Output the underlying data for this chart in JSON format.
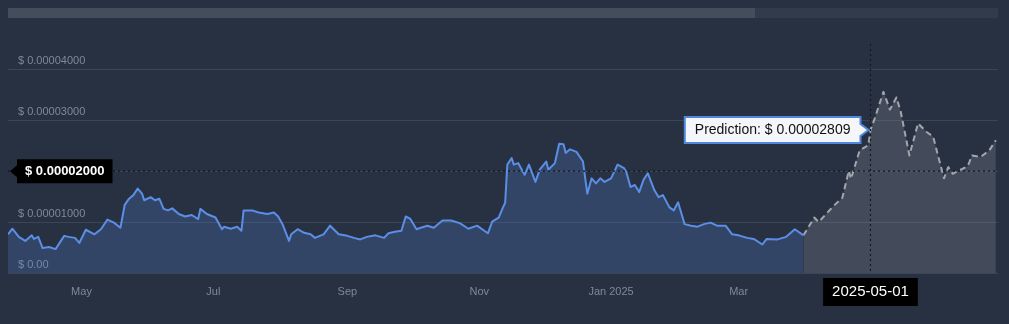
{
  "chart_data": {
    "type": "area",
    "xlim": [
      "2024-03-28",
      "2025-06-29"
    ],
    "ylim": [
      0,
      4.5e-05
    ],
    "xticks": [
      {
        "value": "2024-05-01",
        "label": "May"
      },
      {
        "value": "2024-07-01",
        "label": "Jul"
      },
      {
        "value": "2024-09-01",
        "label": "Sep"
      },
      {
        "value": "2024-11-01",
        "label": "Nov"
      },
      {
        "value": "2025-01-01",
        "label": "Jan 2025"
      },
      {
        "value": "2025-03-01",
        "label": "Mar"
      }
    ],
    "yticks": [
      {
        "value": 0,
        "label": "$ 0.00"
      },
      {
        "value": 1e-05,
        "label": "$ 0.00001000"
      },
      {
        "value": 2e-05,
        "label": null
      },
      {
        "value": 3e-05,
        "label": "$ 0.00003000"
      },
      {
        "value": 4e-05,
        "label": "$ 0.00004000"
      }
    ],
    "grid": "y",
    "legend": false,
    "marker": "none",
    "series": [
      {
        "type": "area",
        "color": "#5b8ee6",
        "line_style": "solid",
        "x": [
          "2024-03-28",
          "2024-03-30",
          "2024-04-02",
          "2024-04-05",
          "2024-04-08",
          "2024-04-09",
          "2024-04-11",
          "2024-04-13",
          "2024-04-16",
          "2024-04-19",
          "2024-04-23",
          "2024-04-25",
          "2024-04-28",
          "2024-04-30",
          "2024-05-03",
          "2024-05-07",
          "2024-05-10",
          "2024-05-13",
          "2024-05-16",
          "2024-05-19",
          "2024-05-21",
          "2024-05-23",
          "2024-05-25",
          "2024-05-27",
          "2024-05-29",
          "2024-05-30",
          "2024-06-02",
          "2024-06-04",
          "2024-06-06",
          "2024-06-08",
          "2024-06-10",
          "2024-06-12",
          "2024-06-15",
          "2024-06-18",
          "2024-06-21",
          "2024-06-24",
          "2024-06-25",
          "2024-06-28",
          "2024-07-02",
          "2024-07-05",
          "2024-07-06",
          "2024-07-09",
          "2024-07-12",
          "2024-07-14",
          "2024-07-15",
          "2024-07-19",
          "2024-07-22",
          "2024-07-26",
          "2024-07-29",
          "2024-07-31",
          "2024-08-02",
          "2024-08-05",
          "2024-08-06",
          "2024-08-09",
          "2024-08-12",
          "2024-08-15",
          "2024-08-17",
          "2024-08-21",
          "2024-08-24",
          "2024-08-28",
          "2024-09-01",
          "2024-09-04",
          "2024-09-07",
          "2024-09-10",
          "2024-09-14",
          "2024-09-18",
          "2024-09-20",
          "2024-09-23",
          "2024-09-26",
          "2024-09-28",
          "2024-09-30",
          "2024-10-03",
          "2024-10-05",
          "2024-10-08",
          "2024-10-11",
          "2024-10-15",
          "2024-10-19",
          "2024-10-23",
          "2024-10-27",
          "2024-10-31",
          "2024-11-05",
          "2024-11-07",
          "2024-11-10",
          "2024-11-12",
          "2024-11-13",
          "2024-11-14",
          "2024-11-16",
          "2024-11-17",
          "2024-11-19",
          "2024-11-22",
          "2024-11-24",
          "2024-11-27",
          "2024-11-29",
          "2024-12-02",
          "2024-12-03",
          "2024-12-06",
          "2024-12-08",
          "2024-12-10",
          "2024-12-11",
          "2024-12-13",
          "2024-12-16",
          "2024-12-19",
          "2024-12-21",
          "2024-12-23",
          "2024-12-25",
          "2024-12-27",
          "2024-12-29",
          "2025-01-01",
          "2025-01-04",
          "2025-01-07",
          "2025-01-08",
          "2025-01-10",
          "2025-01-12",
          "2025-01-14",
          "2025-01-16",
          "2025-01-18",
          "2025-01-21",
          "2025-01-23",
          "2025-01-25",
          "2025-01-28",
          "2025-01-30",
          "2025-02-01",
          "2025-02-04",
          "2025-02-07",
          "2025-02-10",
          "2025-02-13",
          "2025-02-16",
          "2025-02-19",
          "2025-02-23",
          "2025-02-26",
          "2025-03-01",
          "2025-03-05",
          "2025-03-08",
          "2025-03-12",
          "2025-03-14",
          "2025-03-19",
          "2025-03-23",
          "2025-03-27",
          "2025-03-31"
        ],
        "values": [
          7.6e-06,
          8.7e-06,
          7.1e-06,
          6.3e-06,
          7.4e-06,
          6.7e-06,
          7.1e-06,
          4.9e-06,
          5.1e-06,
          4.7e-06,
          7.3e-06,
          7.1e-06,
          6.9e-06,
          5.9e-06,
          8.5e-06,
          7.6e-06,
          8.6e-06,
          1.05e-05,
          9.9e-06,
          8.9e-06,
          1.34e-05,
          1.46e-05,
          1.53e-05,
          1.66e-05,
          1.56e-05,
          1.43e-05,
          1.49e-05,
          1.43e-05,
          1.46e-05,
          1.26e-05,
          1.23e-05,
          1.27e-05,
          1.16e-05,
          1.11e-05,
          1.14e-05,
          1.06e-05,
          1.26e-05,
          1.16e-05,
          1.09e-05,
          8.6e-06,
          9.1e-06,
          8.7e-06,
          9.1e-06,
          8.3e-06,
          1.23e-05,
          1.23e-05,
          1.19e-05,
          1.16e-05,
          1.19e-05,
          1.11e-05,
          9.6e-06,
          6.3e-06,
          7.6e-06,
          8.6e-06,
          7.9e-06,
          7.6e-06,
          6.9e-06,
          7.6e-06,
          9.3e-06,
          7.6e-06,
          7.3e-06,
          6.9e-06,
          6.6e-06,
          7.1e-06,
          7.4e-06,
          6.9e-06,
          7.8e-06,
          8.1e-06,
          8.3e-06,
          1.11e-05,
          1.07e-05,
          8.6e-06,
          8.9e-06,
          9.3e-06,
          8.9e-06,
          1.03e-05,
          1.03e-05,
          9.8e-06,
          8.7e-06,
          9.3e-06,
          7.8e-06,
          1.01e-05,
          1.09e-05,
          1.29e-05,
          1.38e-05,
          2.13e-05,
          2.26e-05,
          2.13e-05,
          2.16e-05,
          1.93e-05,
          2.13e-05,
          1.79e-05,
          2.03e-05,
          2.19e-05,
          2.03e-05,
          2.16e-05,
          2.54e-05,
          2.53e-05,
          2.36e-05,
          2.43e-05,
          2.38e-05,
          2.19e-05,
          1.56e-05,
          1.86e-05,
          1.76e-05,
          1.86e-05,
          1.79e-05,
          1.86e-05,
          2.13e-05,
          2.06e-05,
          1.99e-05,
          1.69e-05,
          1.73e-05,
          1.59e-05,
          1.83e-05,
          1.96e-05,
          1.63e-05,
          1.49e-05,
          1.53e-05,
          1.29e-05,
          1.23e-05,
          1.39e-05,
          9.6e-06,
          9.3e-06,
          9.1e-06,
          9.6e-06,
          9.9e-06,
          9.3e-06,
          9.3e-06,
          7.6e-06,
          7.4e-06,
          6.9e-06,
          6.7e-06,
          5.6e-06,
          6.7e-06,
          6.6e-06,
          7.1e-06,
          8.6e-06,
          7.4e-06
        ]
      },
      {
        "type": "area",
        "color": "#a3a6ab",
        "line_style": "dashed",
        "x": [
          "2025-03-31",
          "2025-04-05",
          "2025-04-07",
          "2025-04-14",
          "2025-04-18",
          "2025-04-21",
          "2025-04-22",
          "2025-04-26",
          "2025-04-30",
          "2025-05-01",
          "2025-05-03",
          "2025-05-07",
          "2025-05-10",
          "2025-05-13",
          "2025-05-15",
          "2025-05-19",
          "2025-05-23",
          "2025-05-27",
          "2025-05-30",
          "2025-06-01",
          "2025-06-04",
          "2025-06-06",
          "2025-06-08",
          "2025-06-15",
          "2025-06-17",
          "2025-06-21",
          "2025-06-25",
          "2025-06-28"
        ],
        "values": [
          7.4e-06,
          1.09e-05,
          1e-05,
          1.32e-05,
          1.48e-05,
          2.01e-05,
          1.85e-05,
          2.41e-05,
          2.51e-05,
          2.809e-05,
          3.04e-05,
          3.56e-05,
          3.21e-05,
          3.45e-05,
          3.17e-05,
          2.31e-05,
          2.94e-05,
          2.77e-05,
          2.68e-05,
          2.35e-05,
          1.86e-05,
          2.08e-05,
          1.95e-05,
          2.1e-05,
          2.31e-05,
          2.28e-05,
          2.41e-05,
          2.61e-05
        ]
      }
    ],
    "ref_lines": [
      {
        "axis": "y",
        "value": 2e-05,
        "label": "$ 0.00002000",
        "line_style": "dotted"
      },
      {
        "axis": "x",
        "value": "2025-05-01",
        "label": "2025-05-01",
        "line_style": "dotted"
      }
    ],
    "annotations": [
      {
        "text": "Prediction: $ 0.00002809",
        "x": "2025-05-01",
        "y": 2.809e-05
      }
    ]
  }
}
